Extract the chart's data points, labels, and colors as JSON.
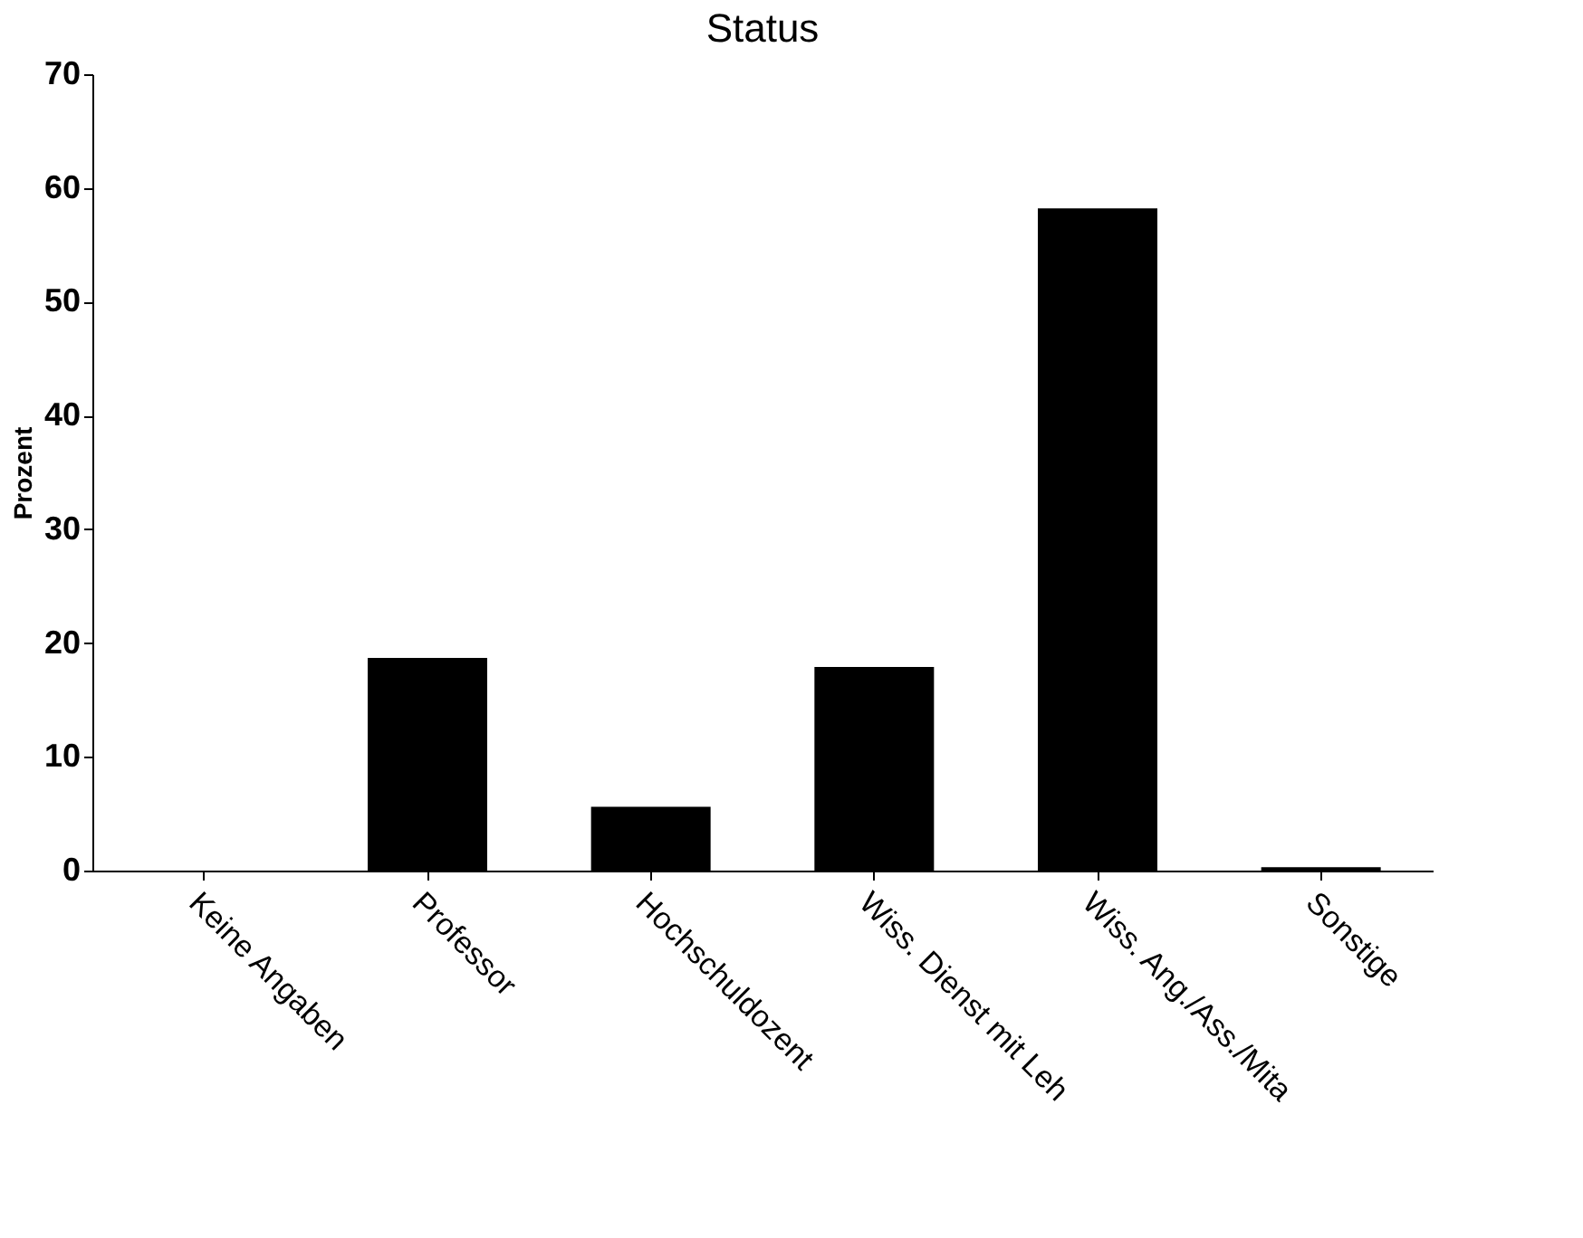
{
  "chart_data": {
    "type": "bar",
    "title": "Status",
    "ylabel": "Prozent",
    "categories": [
      "Keine Angaben",
      "Professor",
      "Hochschuldozent",
      "Wiss. Dienst mit Leh",
      "Wiss. Ang./Ass./Mita",
      "Sonstige"
    ],
    "values": [
      0,
      18.7,
      5.6,
      17.9,
      58.2,
      0.3
    ],
    "color": "#000000",
    "ylim": [
      0,
      70
    ],
    "yticks": [
      0,
      10,
      20,
      30,
      40,
      50,
      60,
      70
    ],
    "grid": false
  }
}
